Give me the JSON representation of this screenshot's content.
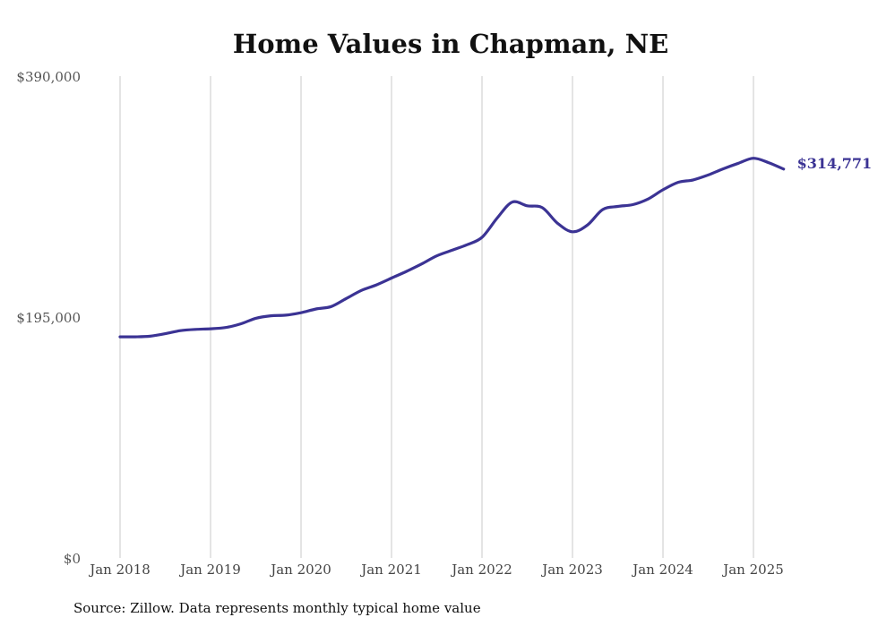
{
  "chart_data": {
    "type": "line",
    "title": "Home Values in Chapman, NE",
    "xlabel": "",
    "ylabel": "",
    "ylim": [
      0,
      390000
    ],
    "xlim": [
      "2018-01",
      "2025-05"
    ],
    "y_ticks": [
      0,
      195000,
      390000
    ],
    "y_tick_labels": [
      "$0",
      "$195,000",
      "$390,000"
    ],
    "x_ticks": [
      "2018-01",
      "2019-01",
      "2020-01",
      "2021-01",
      "2022-01",
      "2023-01",
      "2024-01",
      "2025-01"
    ],
    "x_tick_labels": [
      "Jan 2018",
      "Jan 2019",
      "Jan 2020",
      "Jan 2021",
      "Jan 2022",
      "Jan 2023",
      "Jan 2024",
      "Jan 2025"
    ],
    "grid": "vertical",
    "line_color": "#3b3394",
    "end_label": "$314,771",
    "source": "Source: Zillow. Data represents monthly typical home value",
    "series": [
      {
        "x": [
          "2018-01",
          "2018-03",
          "2018-05",
          "2018-07",
          "2018-09",
          "2018-11",
          "2019-01",
          "2019-03",
          "2019-05",
          "2019-07",
          "2019-09",
          "2019-11",
          "2020-01",
          "2020-03",
          "2020-05",
          "2020-07",
          "2020-09",
          "2020-11",
          "2021-01",
          "2021-03",
          "2021-05",
          "2021-07",
          "2021-09",
          "2021-11",
          "2022-01",
          "2022-03",
          "2022-05",
          "2022-07",
          "2022-09",
          "2022-11",
          "2023-01",
          "2023-03",
          "2023-05",
          "2023-07",
          "2023-09",
          "2023-11",
          "2024-01",
          "2024-03",
          "2024-05",
          "2024-07",
          "2024-09",
          "2024-11",
          "2025-01",
          "2025-03",
          "2025-05"
        ],
        "y": [
          179000,
          179000,
          179500,
          181500,
          184000,
          185000,
          185500,
          186500,
          189500,
          194000,
          196000,
          196500,
          198500,
          201500,
          203500,
          210000,
          216500,
          221000,
          226500,
          232000,
          238000,
          244500,
          249000,
          253500,
          259500,
          275000,
          288000,
          285000,
          283500,
          271000,
          264000,
          269500,
          282000,
          284500,
          286000,
          290500,
          298000,
          304000,
          306000,
          310000,
          315000,
          319500,
          323500,
          320000,
          314771
        ]
      }
    ]
  }
}
